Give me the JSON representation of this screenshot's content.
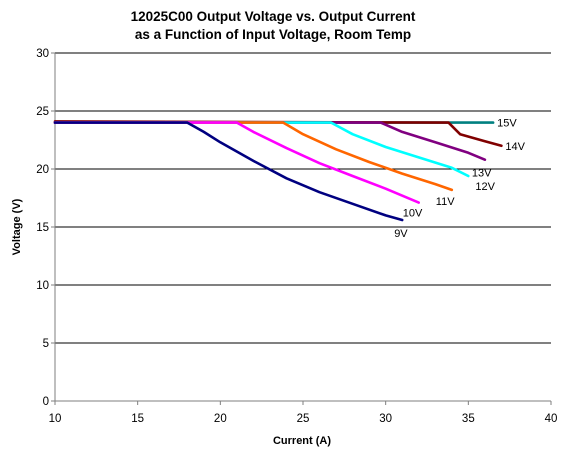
{
  "chart_data": {
    "type": "line",
    "title": "12025C00 Output Voltage vs. Output Current",
    "subtitle": "as a Function of Input Voltage, Room Temp",
    "xlabel": "Current (A)",
    "ylabel": "Voltage (V)",
    "xlim": [
      10,
      40
    ],
    "ylim": [
      0,
      30
    ],
    "xticks": [
      "10",
      "15",
      "20",
      "25",
      "30",
      "35",
      "40"
    ],
    "yticks": [
      "0",
      "5",
      "10",
      "15",
      "20",
      "25",
      "30"
    ],
    "grid": "horizontal",
    "series": [
      {
        "name": "9V",
        "color": "#000080",
        "points": [
          [
            10,
            24
          ],
          [
            18,
            24
          ],
          [
            19,
            23.2
          ],
          [
            20,
            22.3
          ],
          [
            22,
            20.7
          ],
          [
            24,
            19.2
          ],
          [
            26,
            18.0
          ],
          [
            28,
            17.0
          ],
          [
            30,
            16.0
          ],
          [
            31,
            15.6
          ]
        ]
      },
      {
        "name": "10V",
        "color": "#ff00ff",
        "points": [
          [
            10,
            24
          ],
          [
            21,
            24
          ],
          [
            22,
            23.2
          ],
          [
            24,
            21.8
          ],
          [
            26,
            20.5
          ],
          [
            28,
            19.4
          ],
          [
            30,
            18.3
          ],
          [
            32,
            17.1
          ]
        ]
      },
      {
        "name": "11V",
        "color": "#ff6600",
        "points": [
          [
            10,
            24
          ],
          [
            23.8,
            24
          ],
          [
            25,
            23.0
          ],
          [
            27,
            21.7
          ],
          [
            29,
            20.6
          ],
          [
            31,
            19.6
          ],
          [
            33,
            18.7
          ],
          [
            34,
            18.2
          ]
        ]
      },
      {
        "name": "12V",
        "color": "#00ffff",
        "points": [
          [
            10,
            24
          ],
          [
            26.7,
            24
          ],
          [
            28,
            23.0
          ],
          [
            30,
            21.9
          ],
          [
            32,
            21.0
          ],
          [
            34,
            20.1
          ],
          [
            35,
            19.4
          ]
        ]
      },
      {
        "name": "13V",
        "color": "#800080",
        "points": [
          [
            10,
            24
          ],
          [
            29.7,
            24
          ],
          [
            31,
            23.2
          ],
          [
            33,
            22.3
          ],
          [
            35,
            21.4
          ],
          [
            36,
            20.8
          ]
        ]
      },
      {
        "name": "14V",
        "color": "#800000",
        "points": [
          [
            10,
            24.1
          ],
          [
            33.8,
            24
          ],
          [
            34.5,
            23.0
          ],
          [
            36,
            22.4
          ],
          [
            37,
            22.0
          ]
        ]
      },
      {
        "name": "15V",
        "color": "#008080",
        "points": [
          [
            10,
            24
          ],
          [
            36.5,
            24
          ]
        ]
      }
    ]
  }
}
